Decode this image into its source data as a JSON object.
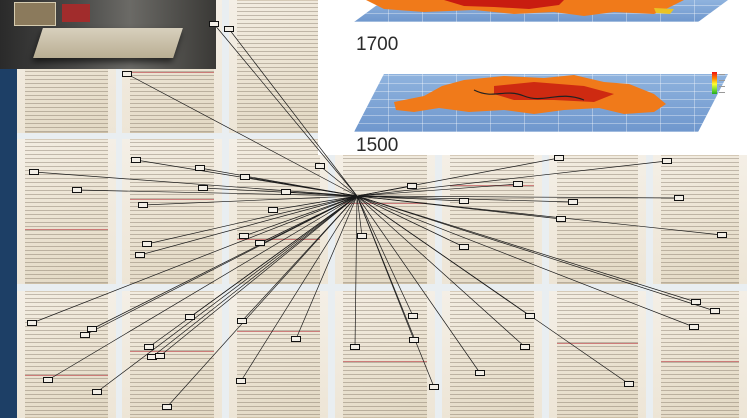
{
  "heatmaps": [
    {
      "year": "1700"
    },
    {
      "year": "1500"
    }
  ],
  "colors": {
    "sidebar": "#1d3f66",
    "heatmap_base": "#6f97cd",
    "heat_orange": "#f07a1a",
    "heat_red": "#c81c10",
    "link_line": "#1a1a1a"
  },
  "icons": [
    "photo-thumbnail",
    "heat-legend-icon",
    "annotation-box-icon"
  ]
}
